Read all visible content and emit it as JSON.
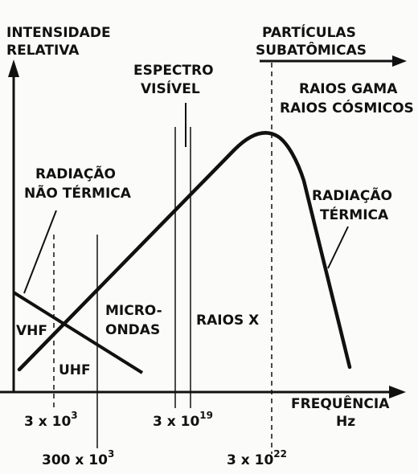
{
  "axes": {
    "y_label_line1": "INTENSIDADE",
    "y_label_line2": "RELATIVA",
    "x_label_line1": "FREQUÊNCIA",
    "x_label_line2": "Hz"
  },
  "ticks": {
    "t1_base": "3 x 10",
    "t1_exp": "3",
    "t2_base": "300 x 10",
    "t2_exp": "3",
    "t3_base": "3 x 10",
    "t3_exp": "19",
    "t4_base": "3 x 10",
    "t4_exp": "22"
  },
  "regions": {
    "particles_line1": "PARTÍCULAS",
    "particles_line2": "SUBATÔMICAS",
    "spectrum_line1": "ESPECTRO",
    "spectrum_line2": "VISÍVEL",
    "gamma_line1": "RAIOS GAMA",
    "gamma_line2": "RAIOS CÓSMICOS",
    "nonthermal_line1": "RADIAÇÃO",
    "nonthermal_line2": "NÃO TÉRMICA",
    "thermal_line1": "RADIAÇÃO",
    "thermal_line2": "TÉRMICA",
    "vhf": "VHF",
    "uhf": "UHF",
    "micro_line1": "MICRO-",
    "micro_line2": "ONDAS",
    "xrays": "RAIOS X"
  },
  "colors": {
    "ink": "#111111",
    "paper": "#fbfbf9"
  }
}
